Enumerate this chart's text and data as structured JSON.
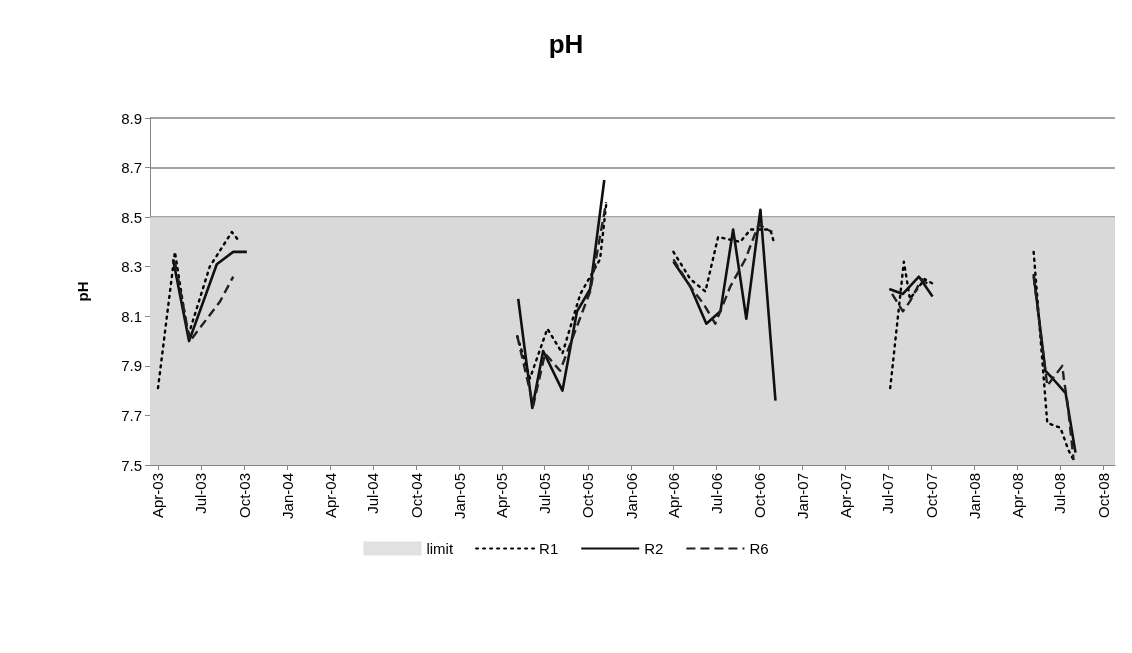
{
  "chart_data": {
    "type": "line",
    "title": "pH",
    "ylabel": "pH",
    "xlim": [
      "2003-03-15",
      "2008-10-26"
    ],
    "xticks": [
      {
        "value": "2003-04-01",
        "label": "Apr-03"
      },
      {
        "value": "2003-07-01",
        "label": "Jul-03"
      },
      {
        "value": "2003-10-01",
        "label": "Oct-03"
      },
      {
        "value": "2004-01-01",
        "label": "Jan-04"
      },
      {
        "value": "2004-04-01",
        "label": "Apr-04"
      },
      {
        "value": "2004-07-01",
        "label": "Jul-04"
      },
      {
        "value": "2004-10-01",
        "label": "Oct-04"
      },
      {
        "value": "2005-01-01",
        "label": "Jan-05"
      },
      {
        "value": "2005-04-01",
        "label": "Apr-05"
      },
      {
        "value": "2005-07-01",
        "label": "Jul-05"
      },
      {
        "value": "2005-10-01",
        "label": "Oct-05"
      },
      {
        "value": "2006-01-01",
        "label": "Jan-06"
      },
      {
        "value": "2006-04-01",
        "label": "Apr-06"
      },
      {
        "value": "2006-07-01",
        "label": "Jul-06"
      },
      {
        "value": "2006-10-01",
        "label": "Oct-06"
      },
      {
        "value": "2007-01-01",
        "label": "Jan-07"
      },
      {
        "value": "2007-04-01",
        "label": "Apr-07"
      },
      {
        "value": "2007-07-01",
        "label": "Jul-07"
      },
      {
        "value": "2007-10-01",
        "label": "Oct-07"
      },
      {
        "value": "2008-01-01",
        "label": "Jan-08"
      },
      {
        "value": "2008-04-01",
        "label": "Apr-08"
      },
      {
        "value": "2008-07-01",
        "label": "Jul-08"
      },
      {
        "value": "2008-10-01",
        "label": "Oct-08"
      }
    ],
    "ylim": [
      7.5,
      8.9
    ],
    "yticks": [
      7.5,
      7.7,
      7.9,
      8.1,
      8.3,
      8.5,
      8.7,
      8.9
    ],
    "grid": "y",
    "legend": "bottom",
    "marker": "none",
    "bands": [
      {
        "axis": "y",
        "from": 7.5,
        "to": 8.5,
        "label": "limit",
        "color": "#d9d9d9"
      }
    ],
    "series": [
      {
        "name": "R1",
        "color": "#000000",
        "line_style": "dotted",
        "x": [
          "2003-04-01",
          "2003-05-07",
          "2003-06-04",
          "2003-07-20",
          "2003-09-05",
          "2003-09-22",
          "2004-08-01",
          "2005-05-04",
          "2005-05-31",
          "2005-07-07",
          "2005-08-08",
          "2005-09-15",
          "2005-10-27",
          "2005-11-09",
          "2006-01-15",
          "2006-04-01",
          "2006-05-07",
          "2006-06-08",
          "2006-07-05",
          "2006-08-21",
          "2006-09-12",
          "2006-10-24",
          "2006-11-02",
          "2007-02-01",
          "2007-07-06",
          "2007-08-04",
          "2007-08-17",
          "2007-09-17",
          "2007-10-06",
          "2007-12-01",
          "2008-05-06",
          "2008-06-04",
          "2008-07-02",
          "2008-07-19",
          "2008-07-30"
        ],
        "values": [
          7.81,
          8.36,
          8.02,
          8.3,
          8.44,
          8.4,
          null,
          8.02,
          7.85,
          8.05,
          7.95,
          8.19,
          8.33,
          8.55,
          null,
          8.36,
          8.25,
          8.2,
          8.42,
          8.4,
          8.45,
          8.45,
          8.39,
          null,
          7.81,
          8.32,
          8.17,
          8.25,
          8.23,
          null,
          8.36,
          7.67,
          7.65,
          7.56,
          7.52
        ]
      },
      {
        "name": "R2",
        "color": "#101010",
        "line_style": "solid",
        "x": [
          "2003-05-03",
          "2003-06-06",
          "2003-08-04",
          "2003-09-08",
          "2003-10-07",
          "2004-08-01",
          "2005-05-06",
          "2005-06-05",
          "2005-06-28",
          "2005-08-08",
          "2005-09-08",
          "2005-10-06",
          "2005-11-05",
          "2006-01-15",
          "2006-04-01",
          "2006-05-07",
          "2006-06-10",
          "2006-07-10",
          "2006-08-06",
          "2006-09-03",
          "2006-10-03",
          "2006-11-04",
          "2007-02-01",
          "2007-07-04",
          "2007-08-02",
          "2007-09-05",
          "2007-10-04",
          "2007-12-01",
          "2008-05-06",
          "2008-05-31",
          "2008-06-15",
          "2008-07-13",
          "2008-08-03"
        ],
        "values": [
          8.33,
          8.0,
          8.31,
          8.36,
          8.36,
          null,
          8.17,
          7.73,
          7.96,
          7.8,
          8.12,
          8.21,
          8.65,
          null,
          8.32,
          8.22,
          8.07,
          8.12,
          8.45,
          8.09,
          8.53,
          7.76,
          null,
          8.21,
          8.19,
          8.26,
          8.18,
          null,
          8.27,
          7.88,
          7.85,
          7.79,
          7.55
        ]
      },
      {
        "name": "R6",
        "color": "#202020",
        "line_style": "dashed",
        "x": [
          "2003-05-07",
          "2003-06-08",
          "2003-08-11",
          "2003-09-08",
          "2004-08-01",
          "2005-05-04",
          "2005-06-07",
          "2005-07-02",
          "2005-08-03",
          "2005-10-06",
          "2005-11-09",
          "2006-01-15",
          "2006-04-01",
          "2006-05-07",
          "2006-06-04",
          "2006-06-29",
          "2006-07-31",
          "2006-09-01",
          "2006-09-29",
          "2006-10-28",
          "2007-02-01",
          "2007-07-10",
          "2007-08-02",
          "2007-08-17",
          "2007-09-11",
          "2007-09-24",
          "2007-12-01",
          "2008-05-06",
          "2008-06-04",
          "2008-07-06",
          "2008-07-09",
          "2008-07-17",
          "2008-07-30"
        ],
        "values": [
          8.32,
          8.0,
          8.16,
          8.26,
          null,
          8.02,
          7.74,
          7.95,
          7.88,
          8.2,
          8.56,
          null,
          8.33,
          8.22,
          8.15,
          8.07,
          8.22,
          8.33,
          8.47,
          8.44,
          null,
          8.19,
          8.12,
          8.16,
          8.25,
          8.23,
          null,
          8.26,
          7.82,
          7.9,
          7.85,
          7.75,
          7.52
        ]
      }
    ]
  }
}
